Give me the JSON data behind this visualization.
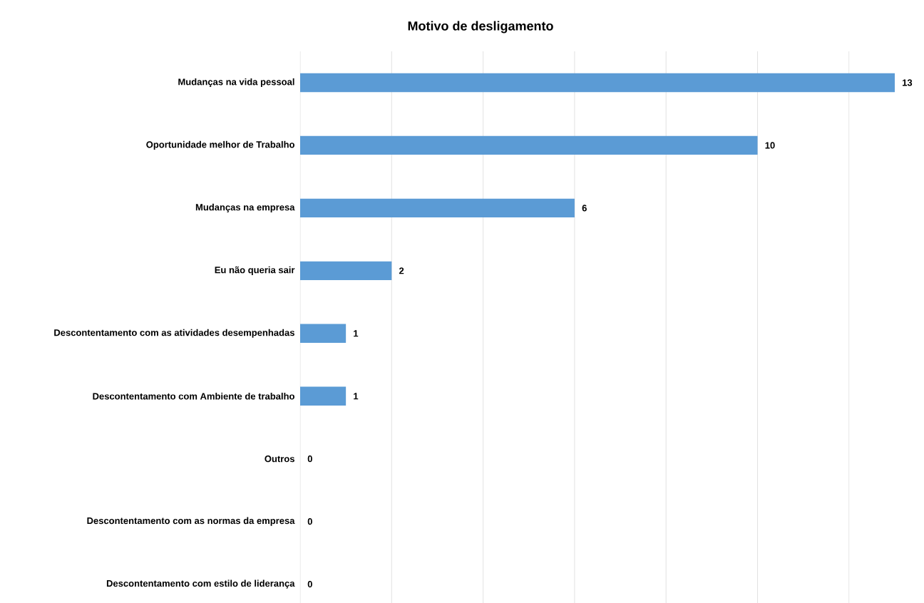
{
  "chart_data": {
    "type": "bar",
    "orientation": "horizontal",
    "title": "Motivo de desligamento",
    "categories": [
      "Mudanças na vida pessoal",
      "Oportunidade melhor de Trabalho",
      "Mudanças na empresa",
      "Eu não queria sair",
      "Descontentamento com as atividades desempenhadas",
      "Descontentamento com Ambiente de trabalho",
      "Outros",
      "Descontentamento com as normas da empresa",
      "Descontentamento com estilo de liderança"
    ],
    "values": [
      13,
      10,
      6,
      2,
      1,
      1,
      0,
      0,
      0
    ],
    "color": "#5b9bd5",
    "data_labels": true,
    "xticks": [
      {
        "value": 0,
        "label": null
      },
      {
        "value": 2,
        "label": null
      },
      {
        "value": 4,
        "label": null
      },
      {
        "value": 6,
        "label": null
      },
      {
        "value": 8,
        "label": null
      },
      {
        "value": 10,
        "label": null
      },
      {
        "value": 12,
        "label": null
      }
    ],
    "tick_labels": "y",
    "grid": "x"
  }
}
